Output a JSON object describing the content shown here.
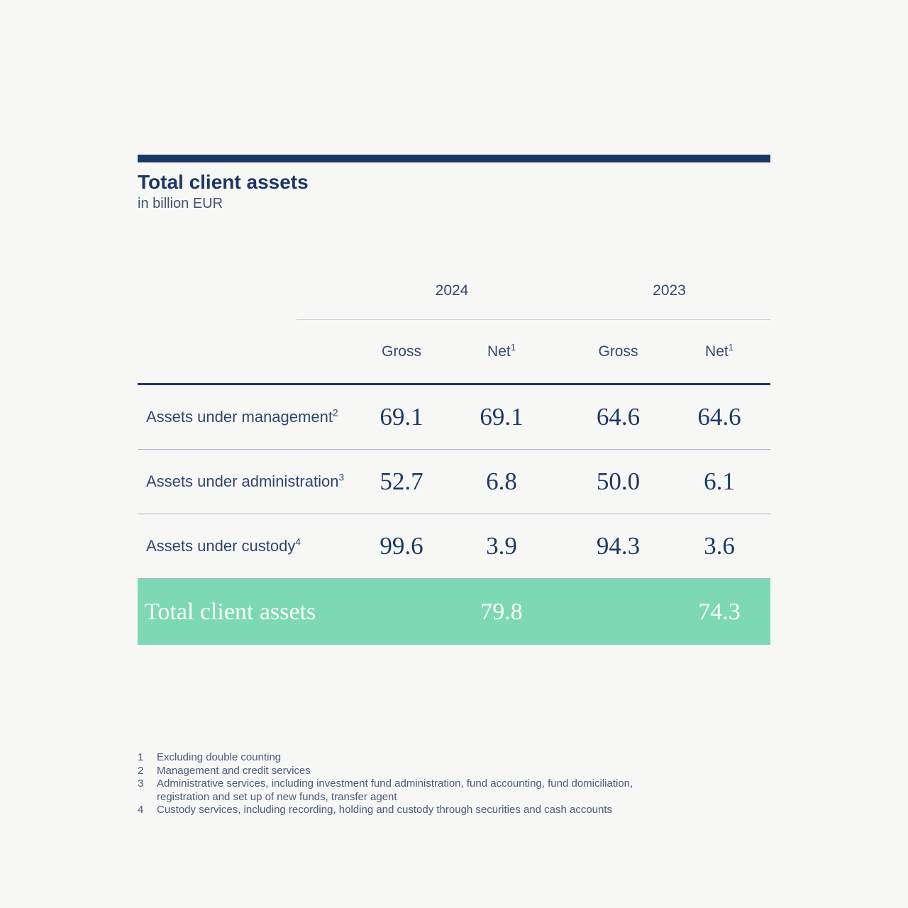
{
  "colors": {
    "background": "#f7f7f6",
    "accent_navy": "#1b3765",
    "number_navy": "#1d3965",
    "total_row_green": "#7cd9b3",
    "total_row_text": "#ffffff",
    "rule_light": "#cdd2de",
    "rule_row": "#a9b4c7"
  },
  "chart_data": {
    "type": "table",
    "title": "Total client assets",
    "subtitle": "in billion EUR",
    "year_groups": [
      {
        "label": "2024"
      },
      {
        "label": "2023"
      }
    ],
    "columns": [
      {
        "label": "Gross",
        "sup": ""
      },
      {
        "label": "Net",
        "sup": "1"
      },
      {
        "label": "Gross",
        "sup": ""
      },
      {
        "label": "Net",
        "sup": "1"
      }
    ],
    "rows": [
      {
        "label": "Assets under management",
        "sup": "2",
        "values": [
          "69.1",
          "69.1",
          "64.6",
          "64.6"
        ]
      },
      {
        "label": "Assets under administration",
        "sup": "3",
        "values": [
          "52.7",
          "6.8",
          "50.0",
          "6.1"
        ]
      },
      {
        "label": "Assets under custody",
        "sup": "4",
        "values": [
          "99.6",
          "3.9",
          "94.3",
          "3.6"
        ]
      }
    ],
    "total_row": {
      "label": "Total client assets",
      "values": [
        "",
        "79.8",
        "",
        "74.3"
      ]
    },
    "footnotes": [
      {
        "num": "1",
        "lines": [
          "Excluding double counting"
        ]
      },
      {
        "num": "2",
        "lines": [
          "Management and credit services"
        ]
      },
      {
        "num": "3",
        "lines": [
          "Administrative services, including investment fund administration, fund accounting, fund domiciliation,",
          "registration and set up of new funds, transfer agent"
        ]
      },
      {
        "num": "4",
        "lines": [
          "Custody services, including recording, holding and custody through securities and cash accounts"
        ]
      }
    ]
  }
}
